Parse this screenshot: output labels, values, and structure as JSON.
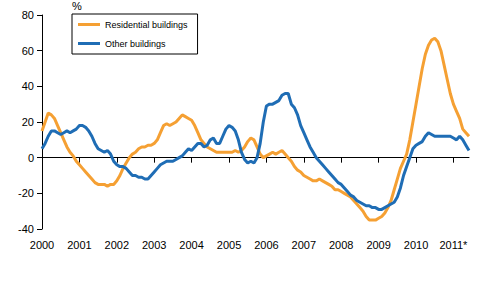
{
  "chart_data": {
    "type": "line",
    "y_label": "%",
    "categories": [
      "2000",
      null,
      null,
      null,
      null,
      null,
      null,
      null,
      null,
      null,
      null,
      null,
      "2001",
      null,
      null,
      null,
      null,
      null,
      null,
      null,
      null,
      null,
      null,
      null,
      "2002",
      null,
      null,
      null,
      null,
      null,
      null,
      null,
      null,
      null,
      null,
      null,
      "2003",
      null,
      null,
      null,
      null,
      null,
      null,
      null,
      null,
      null,
      null,
      null,
      "2004",
      null,
      null,
      null,
      null,
      null,
      null,
      null,
      null,
      null,
      null,
      null,
      "2005",
      null,
      null,
      null,
      null,
      null,
      null,
      null,
      null,
      null,
      null,
      null,
      "2006",
      null,
      null,
      null,
      null,
      null,
      null,
      null,
      null,
      null,
      null,
      null,
      "2007",
      null,
      null,
      null,
      null,
      null,
      null,
      null,
      null,
      null,
      null,
      null,
      "2008",
      null,
      null,
      null,
      null,
      null,
      null,
      null,
      null,
      null,
      null,
      null,
      "2009",
      null,
      null,
      null,
      null,
      null,
      null,
      null,
      null,
      null,
      null,
      null,
      "2010",
      null,
      null,
      null,
      null,
      null,
      null,
      null,
      null,
      null,
      null,
      null,
      "2011*",
      null,
      null,
      null,
      null,
      null
    ],
    "series": [
      {
        "name": "Residential buildings",
        "color": "#f5a033",
        "values": [
          15,
          20,
          25,
          24,
          22,
          18,
          14,
          10,
          6,
          3,
          1,
          -2,
          -4,
          -6,
          -8,
          -10,
          -12,
          -14,
          -15,
          -15,
          -15,
          -16,
          -15,
          -15,
          -13,
          -10,
          -6,
          -3,
          0,
          2,
          3,
          5,
          6,
          6,
          7,
          7,
          8,
          10,
          14,
          18,
          19,
          18,
          19,
          20,
          22,
          24,
          23,
          22,
          21,
          18,
          14,
          10,
          8,
          6,
          5,
          4,
          3,
          3,
          3,
          3,
          3,
          3,
          4,
          3,
          4,
          6,
          9,
          11,
          10,
          6,
          2,
          0,
          1,
          2,
          3,
          2,
          3,
          4,
          2,
          0,
          -2,
          -5,
          -7,
          -8,
          -10,
          -11,
          -12,
          -13,
          -13,
          -12,
          -13,
          -14,
          -15,
          -16,
          -18,
          -18,
          -19,
          -20,
          -21,
          -22,
          -24,
          -26,
          -28,
          -30,
          -33,
          -35,
          -35,
          -35,
          -34,
          -33,
          -31,
          -28,
          -24,
          -18,
          -12,
          -6,
          -2,
          2,
          10,
          20,
          30,
          40,
          50,
          58,
          63,
          66,
          67,
          65,
          60,
          52,
          44,
          36,
          30,
          26,
          22,
          16,
          14,
          12
        ]
      },
      {
        "name": "Other buildings",
        "color": "#1f6db5",
        "values": [
          5,
          8,
          12,
          15,
          15,
          14,
          13,
          14,
          15,
          14,
          15,
          16,
          18,
          18,
          17,
          15,
          12,
          8,
          5,
          4,
          3,
          4,
          2,
          -2,
          -4,
          -5,
          -5,
          -6,
          -8,
          -10,
          -10,
          -11,
          -11,
          -12,
          -12,
          -10,
          -8,
          -6,
          -4,
          -3,
          -2,
          -2,
          -2,
          -1,
          0,
          1,
          3,
          5,
          4,
          6,
          8,
          8,
          6,
          7,
          10,
          11,
          8,
          8,
          12,
          16,
          18,
          17,
          15,
          10,
          3,
          -1,
          -3,
          -2,
          -3,
          0,
          8,
          20,
          29,
          30,
          30,
          31,
          32,
          35,
          36,
          36,
          30,
          28,
          24,
          18,
          14,
          10,
          6,
          3,
          0,
          -2,
          -4,
          -6,
          -8,
          -10,
          -12,
          -14,
          -15,
          -17,
          -19,
          -21,
          -22,
          -24,
          -25,
          -26,
          -27,
          -27,
          -28,
          -28,
          -29,
          -29,
          -28,
          -27,
          -26,
          -25,
          -22,
          -17,
          -10,
          -5,
          0,
          5,
          7,
          8,
          9,
          12,
          14,
          13,
          12,
          12,
          12,
          12,
          12,
          12,
          11,
          10,
          12,
          10,
          7,
          4
        ]
      }
    ],
    "ylim": [
      -40,
      80
    ],
    "yticks": [
      -40,
      -20,
      0,
      20,
      40,
      60,
      80
    ],
    "grid": false,
    "legend": "upper left"
  }
}
